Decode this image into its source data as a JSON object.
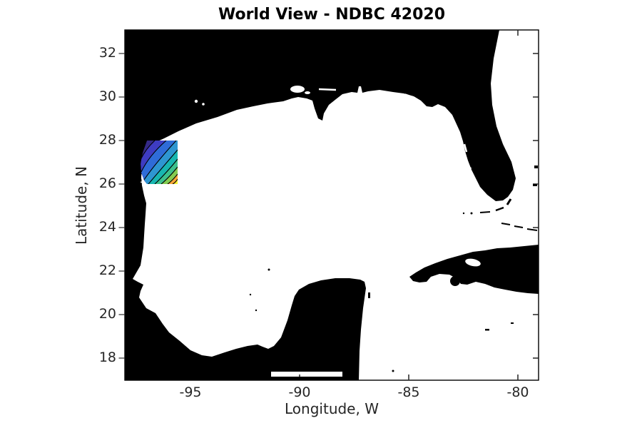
{
  "figure": {
    "title": "World View - NDBC 42020",
    "background_color": "#ffffff"
  },
  "axes": {
    "xlabel": "Longitude, W",
    "ylabel": "Latitude, N",
    "x_tick_labels": [
      "-95",
      "-90",
      "-85",
      "-80"
    ],
    "x_tick_values": [
      -95,
      -90,
      -85,
      -80
    ],
    "y_tick_labels": [
      "32",
      "30",
      "28",
      "26",
      "24",
      "22",
      "20",
      "18"
    ],
    "y_tick_values": [
      32,
      30,
      28,
      26,
      24,
      22,
      20,
      18
    ],
    "xlim": [
      -98.0,
      -79.0
    ],
    "ylim": [
      16.9,
      33.1
    ],
    "tick_text_color": "#262626",
    "border_color": "#000000",
    "left_tick_color": "#3d3d3d"
  },
  "map": {
    "land_color": "#000000",
    "water_color": "#ffffff",
    "visible_features": [
      "Gulf of Mexico",
      "Texas / Mexico coast",
      "Mississippi delta",
      "Florida peninsula",
      "Florida Keys",
      "Yucatan peninsula",
      "Cuba",
      "Isla de la Juventud",
      "Bahamas islets",
      "Cayman islets"
    ]
  },
  "chart_data": {
    "type": "heatmap",
    "title": "World View - NDBC 42020",
    "xlabel": "Longitude, W",
    "ylabel": "Latitude, N",
    "x_range": [
      -98.0,
      -79.0
    ],
    "y_range": [
      16.9,
      33.1
    ],
    "grid": false,
    "legend": "none",
    "contour_overlay": {
      "description": "filled contour patch over coastal water near buoy NDBC 42020",
      "lon_range": [
        -97.3,
        -95.6
      ],
      "lat_range": [
        26.0,
        28.05
      ],
      "n_bands": 9,
      "band_colors_outer_to_inner": [
        "#352a87",
        "#3e3cc2",
        "#2f6cd8",
        "#2e96d1",
        "#18b6b0",
        "#3dc18c",
        "#85cb51",
        "#f7a63a",
        "#f8f32e"
      ],
      "contour_line_color": "#000000",
      "gradient_direction": "values increase from northwest (dark blue) to southeast (yellow)"
    }
  }
}
